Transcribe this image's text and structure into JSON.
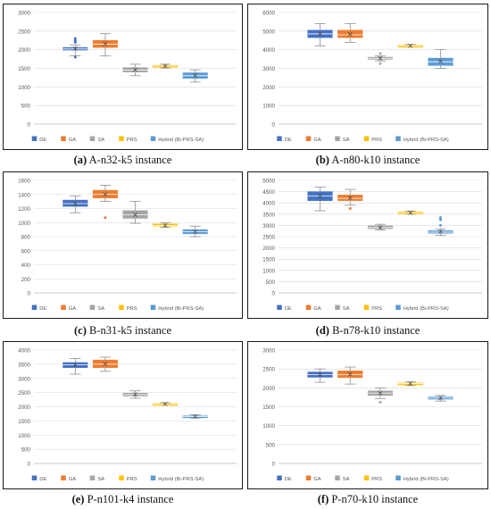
{
  "colors": {
    "DE": "#4472c4",
    "GA": "#ed7d31",
    "SA": "#a5a5a5",
    "PRS": "#ffc000",
    "Hybrid": "#5b9bd5",
    "grid": "#d9d9d9",
    "axis_text": "#595959"
  },
  "legend": [
    "DE",
    "GA",
    "SA",
    "PRS",
    "Hybrid (Bi-PRS-SA)"
  ],
  "chart_data": [
    {
      "type": "box",
      "caption_letter": "(a)",
      "caption_text": " A-n32-k5 instance",
      "ylim": [
        0,
        3000
      ],
      "yticks": [
        0,
        500,
        1000,
        1500,
        2000,
        2500,
        3000
      ],
      "series": [
        {
          "name": "DE",
          "min": 1840,
          "q1": 1990,
          "median": 2020,
          "q3": 2060,
          "max": 2130,
          "mean": 2030,
          "outliers": [
            1800,
            2200,
            2240,
            2300
          ]
        },
        {
          "name": "GA",
          "min": 1830,
          "q1": 2060,
          "median": 2150,
          "q3": 2250,
          "max": 2430,
          "mean": 2160,
          "outliers": []
        },
        {
          "name": "SA",
          "min": 1300,
          "q1": 1400,
          "median": 1450,
          "q3": 1520,
          "max": 1610,
          "mean": 1460,
          "outliers": []
        },
        {
          "name": "PRS",
          "min": 1510,
          "q1": 1540,
          "median": 1560,
          "q3": 1580,
          "max": 1610,
          "mean": 1560,
          "outliers": []
        },
        {
          "name": "Hybrid (Bi-PRS-SA)",
          "min": 1130,
          "q1": 1230,
          "median": 1300,
          "q3": 1380,
          "max": 1460,
          "mean": 1310,
          "outliers": []
        }
      ]
    },
    {
      "type": "box",
      "caption_letter": "(b)",
      "caption_text": " A-n80-k10 instance",
      "ylim": [
        0,
        6000
      ],
      "yticks": [
        0,
        1000,
        2000,
        3000,
        4000,
        5000,
        6000
      ],
      "series": [
        {
          "name": "DE",
          "min": 4200,
          "q1": 4650,
          "median": 4850,
          "q3": 5050,
          "max": 5400,
          "mean": 4850,
          "outliers": []
        },
        {
          "name": "GA",
          "min": 4400,
          "q1": 4650,
          "median": 4800,
          "q3": 5050,
          "max": 5400,
          "mean": 4830,
          "outliers": []
        },
        {
          "name": "SA",
          "min": 3400,
          "q1": 3480,
          "median": 3540,
          "q3": 3600,
          "max": 3660,
          "mean": 3540,
          "outliers": [
            3250,
            3800
          ]
        },
        {
          "name": "PRS",
          "min": 4150,
          "q1": 4180,
          "median": 4200,
          "q3": 4240,
          "max": 4280,
          "mean": 4210,
          "outliers": []
        },
        {
          "name": "Hybrid (Bi-PRS-SA)",
          "min": 3000,
          "q1": 3150,
          "median": 3350,
          "q3": 3550,
          "max": 4000,
          "mean": 3380,
          "outliers": []
        }
      ]
    },
    {
      "type": "box",
      "caption_letter": "(c)",
      "caption_text": " B-n31-k5 instance",
      "ylim": [
        0,
        1600
      ],
      "yticks": [
        0,
        200,
        400,
        600,
        800,
        1000,
        1200,
        1400,
        1600
      ],
      "series": [
        {
          "name": "DE",
          "min": 1140,
          "q1": 1230,
          "median": 1270,
          "q3": 1320,
          "max": 1380,
          "mean": 1270,
          "outliers": []
        },
        {
          "name": "GA",
          "min": 1300,
          "q1": 1350,
          "median": 1400,
          "q3": 1460,
          "max": 1530,
          "mean": 1400,
          "outliers": [
            1070
          ]
        },
        {
          "name": "SA",
          "min": 990,
          "q1": 1060,
          "median": 1110,
          "q3": 1170,
          "max": 1300,
          "mean": 1110,
          "outliers": []
        },
        {
          "name": "PRS",
          "min": 930,
          "q1": 950,
          "median": 960,
          "q3": 980,
          "max": 1000,
          "mean": 960,
          "outliers": []
        },
        {
          "name": "Hybrid (Bi-PRS-SA)",
          "min": 800,
          "q1": 840,
          "median": 870,
          "q3": 900,
          "max": 950,
          "mean": 870,
          "outliers": []
        }
      ]
    },
    {
      "type": "box",
      "caption_letter": "(d)",
      "caption_text": " B-n78-k10 instance",
      "ylim": [
        0,
        5000
      ],
      "yticks": [
        0,
        500,
        1000,
        1500,
        2000,
        2500,
        3000,
        3500,
        4000,
        4500,
        5000
      ],
      "series": [
        {
          "name": "DE",
          "min": 3650,
          "q1": 4100,
          "median": 4300,
          "q3": 4500,
          "max": 4700,
          "mean": 4300,
          "outliers": []
        },
        {
          "name": "GA",
          "min": 3900,
          "q1": 4100,
          "median": 4200,
          "q3": 4350,
          "max": 4600,
          "mean": 4220,
          "outliers": [
            3750
          ]
        },
        {
          "name": "SA",
          "min": 2800,
          "q1": 2850,
          "median": 2900,
          "q3": 2980,
          "max": 3050,
          "mean": 2910,
          "outliers": []
        },
        {
          "name": "PRS",
          "min": 3500,
          "q1": 3530,
          "median": 3560,
          "q3": 3600,
          "max": 3640,
          "mean": 3560,
          "outliers": []
        },
        {
          "name": "Hybrid (Bi-PRS-SA)",
          "min": 2550,
          "q1": 2650,
          "median": 2700,
          "q3": 2770,
          "max": 2850,
          "mean": 2720,
          "outliers": [
            3000,
            3250,
            3350
          ]
        }
      ]
    },
    {
      "type": "box",
      "caption_letter": "(e)",
      "caption_text": " P-n101-k4 instance",
      "ylim": [
        0,
        4000
      ],
      "yticks": [
        0,
        500,
        1000,
        1500,
        2000,
        2500,
        3000,
        3500,
        4000
      ],
      "series": [
        {
          "name": "DE",
          "min": 3150,
          "q1": 3380,
          "median": 3480,
          "q3": 3560,
          "max": 3700,
          "mean": 3470,
          "outliers": []
        },
        {
          "name": "GA",
          "min": 3250,
          "q1": 3380,
          "median": 3500,
          "q3": 3650,
          "max": 3750,
          "mean": 3510,
          "outliers": []
        },
        {
          "name": "SA",
          "min": 2300,
          "q1": 2380,
          "median": 2430,
          "q3": 2480,
          "max": 2560,
          "mean": 2430,
          "outliers": []
        },
        {
          "name": "PRS",
          "min": 2060,
          "q1": 2080,
          "median": 2100,
          "q3": 2120,
          "max": 2140,
          "mean": 2100,
          "outliers": []
        },
        {
          "name": "Hybrid (Bi-PRS-SA)",
          "min": 1600,
          "q1": 1630,
          "median": 1650,
          "q3": 1680,
          "max": 1720,
          "mean": 1650,
          "outliers": []
        }
      ]
    },
    {
      "type": "box",
      "caption_letter": "(f)",
      "caption_text": " P-n70-k10 instance",
      "ylim": [
        0,
        3000
      ],
      "yticks": [
        0,
        500,
        1000,
        1500,
        2000,
        2500,
        3000
      ],
      "series": [
        {
          "name": "DE",
          "min": 2150,
          "q1": 2280,
          "median": 2350,
          "q3": 2420,
          "max": 2500,
          "mean": 2350,
          "outliers": []
        },
        {
          "name": "GA",
          "min": 2100,
          "q1": 2270,
          "median": 2350,
          "q3": 2450,
          "max": 2550,
          "mean": 2360,
          "outliers": []
        },
        {
          "name": "SA",
          "min": 1720,
          "q1": 1800,
          "median": 1860,
          "q3": 1920,
          "max": 2000,
          "mean": 1860,
          "outliers": [
            1620
          ]
        },
        {
          "name": "PRS",
          "min": 2060,
          "q1": 2090,
          "median": 2110,
          "q3": 2130,
          "max": 2160,
          "mean": 2110,
          "outliers": []
        },
        {
          "name": "Hybrid (Bi-PRS-SA)",
          "min": 1650,
          "q1": 1700,
          "median": 1730,
          "q3": 1760,
          "max": 1800,
          "mean": 1730,
          "outliers": []
        }
      ]
    }
  ]
}
